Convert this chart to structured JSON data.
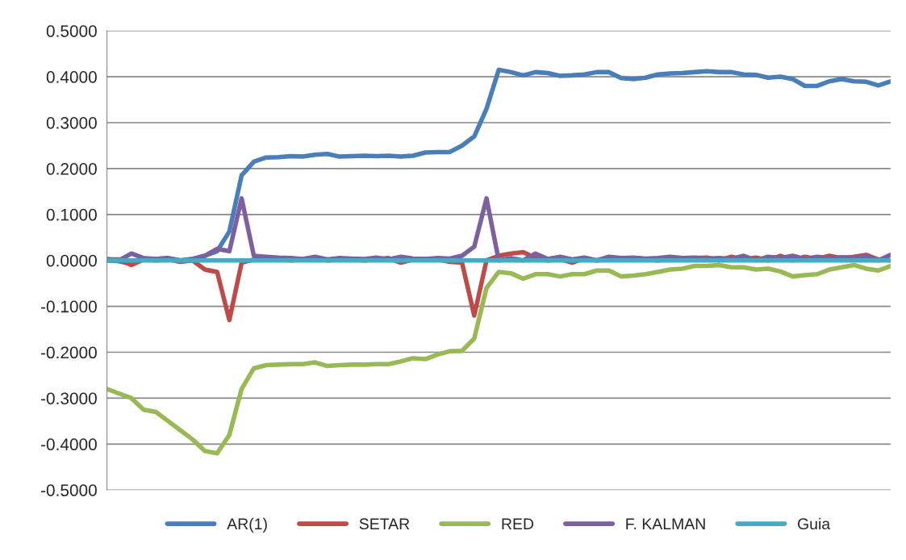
{
  "chart_data": {
    "type": "line",
    "categories": [
      null,
      null,
      null,
      null,
      null,
      null,
      null,
      null,
      null,
      null,
      null,
      null,
      null,
      null,
      null,
      null,
      null,
      null,
      null,
      null,
      null,
      null,
      null,
      null,
      null,
      null,
      null,
      null,
      null,
      null,
      null,
      null,
      null,
      null,
      null,
      null,
      null,
      null,
      null,
      null,
      null,
      null,
      null,
      null,
      null,
      null,
      null,
      null,
      null,
      null,
      null,
      null,
      null,
      null,
      null,
      null,
      null,
      null,
      null,
      null,
      null,
      null,
      null,
      null,
      null
    ],
    "series": [
      {
        "name": "AR(1)",
        "color": "#4a7ebb",
        "values": [
          0.0,
          -0.002,
          -0.008,
          0.002,
          0.003,
          0.005,
          0.0,
          0.003,
          0.01,
          0.02,
          0.063,
          0.185,
          0.215,
          0.224,
          0.225,
          0.227,
          0.226,
          0.23,
          0.232,
          0.226,
          0.227,
          0.228,
          0.227,
          0.228,
          0.226,
          0.228,
          0.235,
          0.236,
          0.236,
          0.25,
          0.27,
          0.33,
          0.415,
          0.41,
          0.403,
          0.41,
          0.408,
          0.402,
          0.403,
          0.405,
          0.41,
          0.41,
          0.397,
          0.395,
          0.398,
          0.405,
          0.407,
          0.408,
          0.41,
          0.412,
          0.41,
          0.41,
          0.405,
          0.404,
          0.398,
          0.4,
          0.395,
          0.38,
          0.38,
          0.39,
          0.395,
          0.39,
          0.389,
          0.381,
          0.39
        ]
      },
      {
        "name": "SETAR",
        "color": "#be4b48",
        "values": [
          0.002,
          0.002,
          -0.01,
          0.002,
          0.0,
          0.002,
          -0.003,
          0.0,
          -0.02,
          -0.025,
          -0.13,
          -0.005,
          0.002,
          0.002,
          0.003,
          0.0,
          0.002,
          0.005,
          0.0,
          0.002,
          0.003,
          0.0,
          0.002,
          0.005,
          -0.005,
          0.002,
          0.003,
          0.002,
          -0.003,
          -0.005,
          -0.12,
          0.0,
          0.01,
          0.015,
          0.018,
          0.005,
          0.0,
          0.003,
          -0.005,
          0.005,
          0.0,
          0.003,
          0.002,
          0.004,
          0.002,
          0.0,
          0.003,
          0.004,
          0.005,
          0.006,
          0.0,
          0.008,
          0.002,
          0.006,
          0.0,
          0.01,
          0.0,
          0.008,
          0.003,
          0.01,
          0.005,
          0.008,
          0.012,
          0.002,
          0.0
        ]
      },
      {
        "name": "RED",
        "color": "#98b954",
        "values": [
          -0.28,
          -0.29,
          -0.3,
          -0.325,
          -0.33,
          -0.35,
          -0.37,
          -0.39,
          -0.415,
          -0.42,
          -0.38,
          -0.28,
          -0.235,
          -0.228,
          -0.227,
          -0.226,
          -0.226,
          -0.222,
          -0.23,
          -0.228,
          -0.227,
          -0.227,
          -0.226,
          -0.226,
          -0.22,
          -0.213,
          -0.215,
          -0.205,
          -0.198,
          -0.197,
          -0.17,
          -0.06,
          -0.025,
          -0.028,
          -0.04,
          -0.03,
          -0.03,
          -0.035,
          -0.03,
          -0.03,
          -0.022,
          -0.022,
          -0.035,
          -0.033,
          -0.03,
          -0.025,
          -0.02,
          -0.018,
          -0.012,
          -0.012,
          -0.01,
          -0.015,
          -0.015,
          -0.02,
          -0.018,
          -0.024,
          -0.035,
          -0.032,
          -0.03,
          -0.02,
          -0.015,
          -0.01,
          -0.018,
          -0.022,
          -0.012
        ]
      },
      {
        "name": "F. KALMAN",
        "color": "#7d60a0",
        "values": [
          0.003,
          0.0,
          0.015,
          0.005,
          0.003,
          0.005,
          0.0,
          0.003,
          0.01,
          0.025,
          0.02,
          0.135,
          0.01,
          0.008,
          0.006,
          0.005,
          0.003,
          0.008,
          0.002,
          0.005,
          0.004,
          0.003,
          0.006,
          0.002,
          0.008,
          0.004,
          0.003,
          0.005,
          0.004,
          0.01,
          0.03,
          0.135,
          0.0,
          0.005,
          0.0,
          0.015,
          0.003,
          0.008,
          0.002,
          0.006,
          0.0,
          0.008,
          0.005,
          0.006,
          0.004,
          0.005,
          0.008,
          0.005,
          0.006,
          0.004,
          0.005,
          0.003,
          0.01,
          0.0,
          0.008,
          0.005,
          0.01,
          0.003,
          0.008,
          0.004,
          0.007,
          0.005,
          0.009,
          0.0,
          0.012
        ]
      },
      {
        "name": "Guia",
        "color": "#46aac5",
        "values": [
          0,
          0,
          0,
          0,
          0,
          0,
          0,
          0,
          0,
          0,
          0,
          0,
          0,
          0,
          0,
          0,
          0,
          0,
          0,
          0,
          0,
          0,
          0,
          0,
          0,
          0,
          0,
          0,
          0,
          0,
          0,
          0,
          0,
          0,
          0,
          0,
          0,
          0,
          0,
          0,
          0,
          0,
          0,
          0,
          0,
          0,
          0,
          0,
          0,
          0,
          0,
          0,
          0,
          0,
          0,
          0,
          0,
          0,
          0,
          0,
          0,
          0,
          0,
          0,
          0
        ]
      }
    ],
    "ylim": [
      -0.5,
      0.5
    ],
    "yticks": [
      {
        "value": -0.5,
        "label": "-0.5000"
      },
      {
        "value": -0.4,
        "label": "-0.4000"
      },
      {
        "value": -0.3,
        "label": "-0.3000"
      },
      {
        "value": -0.2,
        "label": "-0.2000"
      },
      {
        "value": -0.1,
        "label": "-0.1000"
      },
      {
        "value": 0.0,
        "label": "0.0000"
      },
      {
        "value": 0.1,
        "label": "0.1000"
      },
      {
        "value": 0.2,
        "label": "0.2000"
      },
      {
        "value": 0.3,
        "label": "0.3000"
      },
      {
        "value": 0.4,
        "label": "0.4000"
      },
      {
        "value": 0.5,
        "label": "0.5000"
      }
    ],
    "grid": "y",
    "legend": "bottom",
    "marker": "none",
    "line_style": "solid"
  }
}
